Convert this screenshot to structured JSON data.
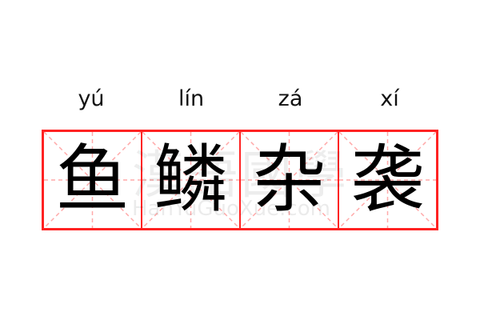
{
  "pinyin": [
    "yú",
    "lín",
    "zá",
    "xí"
  ],
  "characters": [
    "鱼",
    "鳞",
    "杂",
    "袭"
  ],
  "watermark": {
    "han": "漢語國學",
    "latin": "HanYuGuoXue.com"
  },
  "colors": {
    "grid_border": "#ff2222",
    "guide_lines": "#ffaaaa",
    "text": "#000000"
  }
}
